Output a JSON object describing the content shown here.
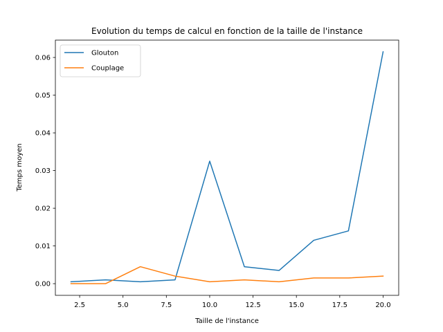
{
  "chart_data": {
    "type": "line",
    "title": "Evolution du temps de calcul en fonction de la taille de l'instance",
    "xlabel": "Taille de l'instance",
    "ylabel": "Temps moyen",
    "xlim": [
      1.1,
      20.9
    ],
    "ylim": [
      -0.0031,
      0.0646
    ],
    "xticks": [
      2.5,
      5.0,
      7.5,
      10.0,
      12.5,
      15.0,
      17.5,
      20.0
    ],
    "xtick_labels": [
      "2.5",
      "5.0",
      "7.5",
      "10.0",
      "12.5",
      "15.0",
      "17.5",
      "20.0"
    ],
    "yticks": [
      0.0,
      0.01,
      0.02,
      0.03,
      0.04,
      0.05,
      0.06
    ],
    "ytick_labels": [
      "0.00",
      "0.01",
      "0.02",
      "0.03",
      "0.04",
      "0.05",
      "0.06"
    ],
    "grid": false,
    "legend_position": "top-left",
    "x": [
      2,
      4,
      6,
      8,
      10,
      12,
      14,
      16,
      18,
      20
    ],
    "series": [
      {
        "name": "Glouton",
        "color": "#1f77b4",
        "values": [
          0.0005,
          0.001,
          0.0005,
          0.001,
          0.0325,
          0.0045,
          0.0035,
          0.0115,
          0.014,
          0.0615
        ]
      },
      {
        "name": "Couplage",
        "color": "#ff7f0e",
        "values": [
          0.0,
          0.0,
          0.0045,
          0.002,
          0.0005,
          0.001,
          0.0005,
          0.0015,
          0.0015,
          0.002
        ]
      }
    ]
  }
}
